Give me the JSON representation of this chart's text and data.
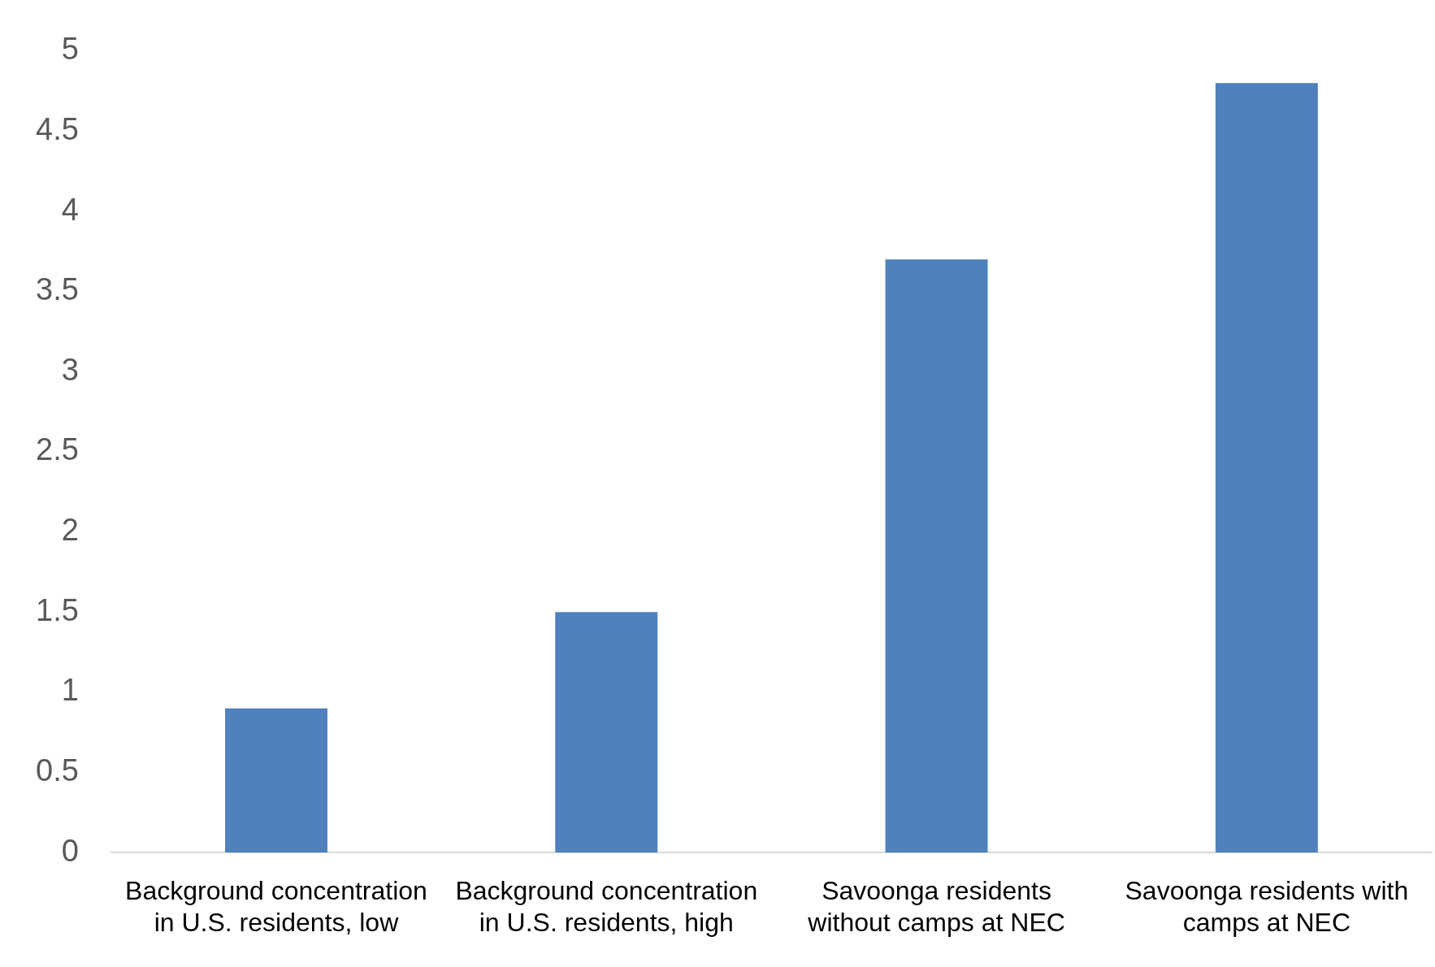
{
  "chart_data": {
    "type": "bar",
    "categories": [
      "Background concentration in U.S. residents, low",
      "Background concentration in U.S. residents, high",
      "Savoonga residents without camps at NEC",
      "Savoonga residents with camps at NEC"
    ],
    "values": [
      0.9,
      1.5,
      3.7,
      4.8
    ],
    "color": "#4f81bd",
    "ylim": [
      0,
      5
    ],
    "yticks": [
      0,
      0.5,
      1,
      1.5,
      2,
      2.5,
      3,
      3.5,
      4,
      4.5,
      5
    ],
    "grid": false,
    "legend": false
  }
}
